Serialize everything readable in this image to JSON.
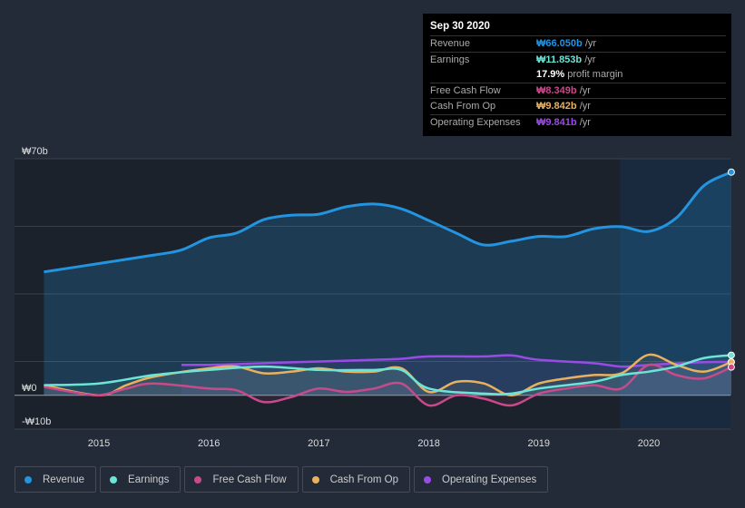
{
  "tooltip": {
    "date": "Sep 30 2020",
    "rows": [
      {
        "label": "Revenue",
        "value": "₩66.050b",
        "unit": "/yr",
        "color": "#2394df"
      },
      {
        "label": "Earnings",
        "value": "₩11.853b",
        "unit": "/yr",
        "color": "#6ce5d6"
      },
      {
        "label": "",
        "value": "17.9%",
        "unit": "profit margin",
        "color": "#ffffff"
      },
      {
        "label": "Free Cash Flow",
        "value": "₩8.349b",
        "unit": "/yr",
        "color": "#c84a8b"
      },
      {
        "label": "Cash From Op",
        "value": "₩9.842b",
        "unit": "/yr",
        "color": "#e9b15e"
      },
      {
        "label": "Operating Expenses",
        "value": "₩9.841b",
        "unit": "/yr",
        "color": "#9a4be5"
      }
    ]
  },
  "chart_data": {
    "type": "line",
    "ylim": [
      -10,
      70
    ],
    "xlim": [
      2014.5,
      2020.75
    ],
    "y_ticks": [
      {
        "v": 70,
        "label": "₩70b"
      },
      {
        "v": 0,
        "label": "₩0"
      },
      {
        "v": -10,
        "label": "-₩10b"
      }
    ],
    "x_ticks": [
      {
        "v": 2015,
        "label": "2015"
      },
      {
        "v": 2016,
        "label": "2016"
      },
      {
        "v": 2017,
        "label": "2017"
      },
      {
        "v": 2018,
        "label": "2018"
      },
      {
        "v": 2019,
        "label": "2019"
      },
      {
        "v": 2020,
        "label": "2020"
      }
    ],
    "highlight_from": 2019.74,
    "series": [
      {
        "name": "Revenue",
        "color": "#2394df",
        "fill": true,
        "x": [
          2014.5,
          2015,
          2015.5,
          2015.75,
          2016,
          2016.25,
          2016.5,
          2016.75,
          2017,
          2017.25,
          2017.5,
          2017.75,
          2018,
          2018.25,
          2018.5,
          2018.75,
          2019,
          2019.25,
          2019.5,
          2019.75,
          2020,
          2020.25,
          2020.5,
          2020.75
        ],
        "y": [
          36.5,
          39,
          41.5,
          43,
          46.6,
          48,
          52,
          53.3,
          53.6,
          55.8,
          56.6,
          55.2,
          51.7,
          48,
          44.5,
          45.6,
          47,
          47,
          49.3,
          49.9,
          48.5,
          52.5,
          62,
          66.05
        ]
      },
      {
        "name": "Earnings",
        "color": "#6ce5d6",
        "x": [
          2014.5,
          2015,
          2015.5,
          2016,
          2016.5,
          2017,
          2017.5,
          2017.75,
          2018,
          2018.5,
          2018.75,
          2019,
          2019.5,
          2019.75,
          2020,
          2020.25,
          2020.5,
          2020.75
        ],
        "y": [
          3,
          3.5,
          6,
          7.5,
          8.5,
          7.5,
          7.5,
          7.5,
          2,
          0.5,
          0.5,
          2,
          4,
          6,
          7,
          8.5,
          11,
          11.853
        ]
      },
      {
        "name": "Free Cash Flow",
        "color": "#c84a8b",
        "x": [
          2014.5,
          2014.75,
          2015,
          2015.25,
          2015.5,
          2016,
          2016.25,
          2016.5,
          2016.75,
          2017,
          2017.25,
          2017.5,
          2017.75,
          2018,
          2018.25,
          2018.5,
          2018.75,
          2019,
          2019.25,
          2019.5,
          2019.75,
          2020,
          2020.25,
          2020.5,
          2020.75
        ],
        "y": [
          2.5,
          1,
          0,
          2,
          3.5,
          2,
          1.5,
          -2,
          -0.5,
          2,
          1,
          2,
          3.5,
          -3,
          0,
          -1,
          -3,
          0.5,
          2,
          3,
          2,
          9,
          6,
          5,
          8.349
        ]
      },
      {
        "name": "Cash From Op",
        "color": "#e9b15e",
        "x": [
          2014.5,
          2015,
          2015.25,
          2015.5,
          2016,
          2016.25,
          2016.5,
          2016.75,
          2017,
          2017.25,
          2017.5,
          2017.75,
          2018,
          2018.25,
          2018.5,
          2018.75,
          2019,
          2019.25,
          2019.5,
          2019.75,
          2020,
          2020.25,
          2020.5,
          2020.75
        ],
        "y": [
          3,
          0,
          3,
          5.5,
          8,
          8.5,
          6.5,
          7,
          8,
          7,
          7,
          8,
          1,
          4,
          3.5,
          0,
          3.5,
          5,
          6,
          6.5,
          12,
          9,
          7,
          9.842
        ]
      },
      {
        "name": "Operating Expenses",
        "color": "#9a4be5",
        "x": [
          2015.75,
          2016,
          2016.25,
          2016.5,
          2017,
          2017.5,
          2017.75,
          2018,
          2018.5,
          2018.75,
          2019,
          2019.5,
          2019.75,
          2020,
          2020.5,
          2020.75
        ],
        "y": [
          9,
          9,
          9.2,
          9.5,
          10,
          10.5,
          10.8,
          11.5,
          11.5,
          11.8,
          10.5,
          9.5,
          8.5,
          9,
          9.8,
          9.841
        ]
      }
    ]
  },
  "legend": [
    "Revenue",
    "Earnings",
    "Free Cash Flow",
    "Cash From Op",
    "Operating Expenses"
  ]
}
